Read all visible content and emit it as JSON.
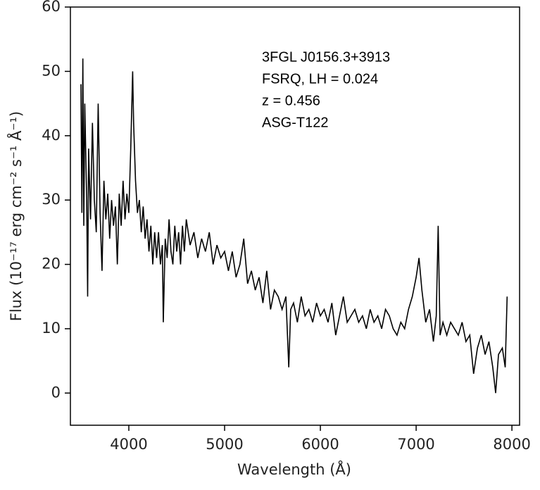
{
  "chart_data": {
    "type": "line",
    "xlabel": "Wavelength (Å)",
    "ylabel": "Flux (10⁻¹⁷ erg cm⁻² s⁻¹ Å⁻¹)",
    "annotations": [
      "3FGL J0156.3+3913",
      "FSRQ, LH = 0.024",
      "z = 0.456",
      "ASG-T122"
    ],
    "color": "#000000",
    "xlim": [
      3390,
      8080
    ],
    "ylim": [
      -5,
      60
    ],
    "xticks": [
      4000,
      5000,
      6000,
      7000,
      8000
    ],
    "yticks": [
      0,
      10,
      20,
      30,
      40,
      50,
      60
    ],
    "x": [
      3500,
      3510,
      3520,
      3530,
      3540,
      3560,
      3570,
      3580,
      3600,
      3620,
      3640,
      3660,
      3680,
      3700,
      3720,
      3740,
      3760,
      3780,
      3800,
      3820,
      3840,
      3860,
      3880,
      3900,
      3920,
      3940,
      3960,
      3980,
      4000,
      4020,
      4040,
      4050,
      4070,
      4090,
      4110,
      4130,
      4150,
      4170,
      4190,
      4210,
      4230,
      4250,
      4270,
      4290,
      4310,
      4330,
      4350,
      4360,
      4380,
      4400,
      4420,
      4440,
      4460,
      4480,
      4500,
      4520,
      4540,
      4560,
      4580,
      4600,
      4640,
      4680,
      4720,
      4760,
      4800,
      4840,
      4880,
      4920,
      4960,
      5000,
      5040,
      5080,
      5120,
      5160,
      5200,
      5240,
      5280,
      5320,
      5360,
      5400,
      5440,
      5480,
      5520,
      5560,
      5600,
      5640,
      5670,
      5690,
      5720,
      5760,
      5800,
      5840,
      5880,
      5920,
      5960,
      6000,
      6040,
      6080,
      6120,
      6160,
      6200,
      6240,
      6280,
      6320,
      6360,
      6400,
      6440,
      6480,
      6520,
      6560,
      6600,
      6640,
      6680,
      6720,
      6760,
      6800,
      6840,
      6880,
      6920,
      6960,
      7000,
      7030,
      7060,
      7100,
      7140,
      7180,
      7210,
      7230,
      7250,
      7280,
      7320,
      7360,
      7400,
      7440,
      7480,
      7520,
      7560,
      7600,
      7640,
      7680,
      7720,
      7760,
      7800,
      7830,
      7860,
      7900,
      7930,
      7950
    ],
    "values": [
      48,
      28,
      52,
      26,
      45,
      30,
      15,
      38,
      27,
      42,
      30,
      25,
      45,
      28,
      19,
      33,
      27,
      31,
      24,
      30,
      26,
      29,
      20,
      31,
      26,
      33,
      27,
      31,
      28,
      38,
      50,
      42,
      33,
      28,
      30,
      25,
      29,
      24,
      27,
      22,
      26,
      20,
      25,
      21,
      25,
      20,
      23,
      11,
      24,
      21,
      27,
      22,
      20,
      26,
      22,
      25,
      20,
      26,
      22,
      27,
      23,
      25,
      21,
      24,
      22,
      25,
      20,
      23,
      21,
      22,
      19,
      22,
      18,
      20,
      24,
      17,
      19,
      16,
      18,
      14,
      19,
      13,
      16,
      15,
      13,
      15,
      4,
      13,
      14,
      11,
      15,
      12,
      13,
      11,
      14,
      12,
      13,
      11,
      14,
      9,
      12,
      15,
      11,
      12,
      13,
      11,
      12,
      10,
      13,
      11,
      12,
      10,
      13,
      12,
      10,
      9,
      11,
      10,
      13,
      15,
      18,
      21,
      16,
      11,
      13,
      8,
      12,
      26,
      9,
      11,
      9,
      11,
      10,
      9,
      11,
      8,
      9,
      3,
      7,
      9,
      6,
      8,
      4,
      0,
      6,
      7,
      4,
      15
    ]
  }
}
